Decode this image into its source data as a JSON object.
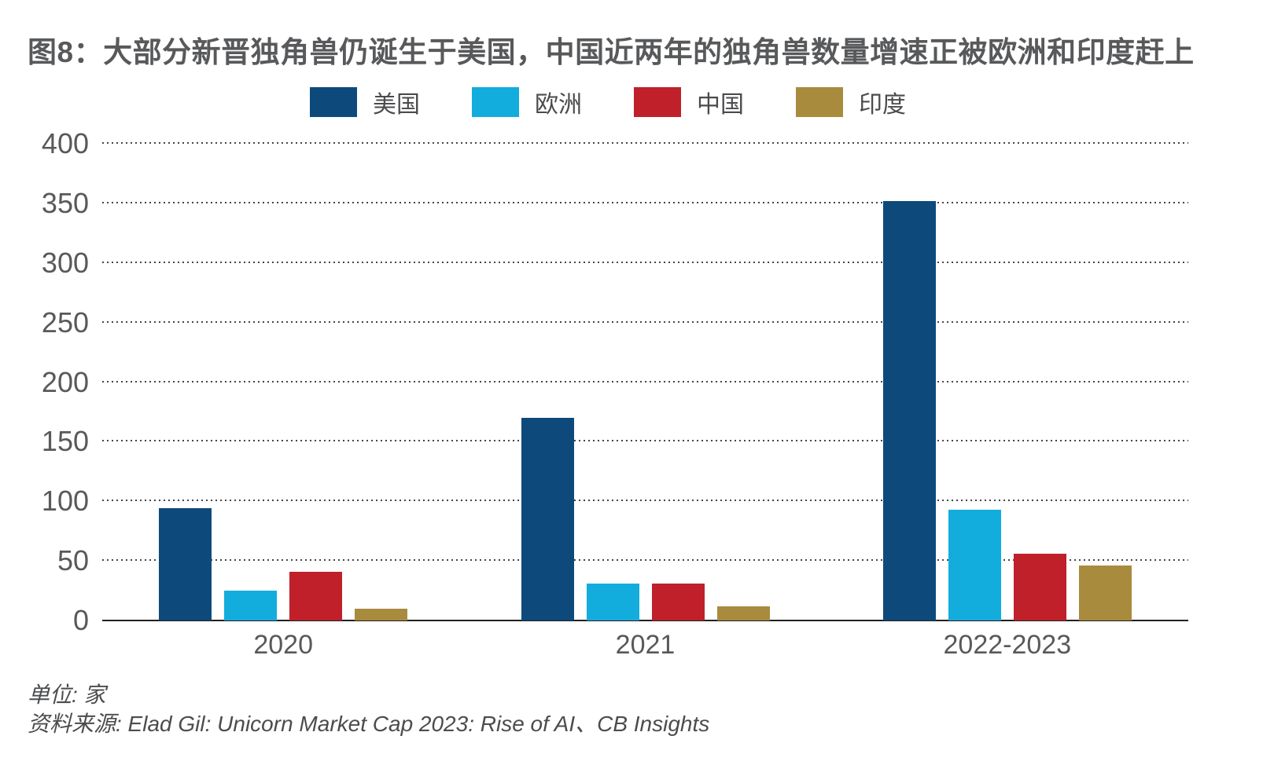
{
  "title": "图8：大部分新晋独角兽仍诞生于美国，中国近两年的独角兽数量增速正被欧洲和印度赶上",
  "footer": {
    "unit": "单位: 家",
    "source": "资料来源: Elad Gil: Unicorn Market Cap 2023: Rise of AI、CB Insights"
  },
  "colors": {
    "us_navy": "#0d4a7b",
    "europe_cyan": "#12addc",
    "china_red": "#bf202a",
    "india_gold": "#a98b3e",
    "text_gray": "#58595b",
    "axis_line": "#231f20"
  },
  "chart_data": {
    "type": "bar",
    "title": "图8：大部分新晋独角兽仍诞生于美国，中国近两年的独角兽数量增速正被欧洲和印度赶上",
    "categories": [
      "2020",
      "2021",
      "2022-2023"
    ],
    "series": [
      {
        "key": "us",
        "name": "美国",
        "color": "#0d4a7b",
        "values": [
          94,
          170,
          352
        ]
      },
      {
        "key": "europe",
        "name": "欧洲",
        "color": "#12addc",
        "values": [
          25,
          31,
          93
        ]
      },
      {
        "key": "china",
        "name": "中国",
        "color": "#bf202a",
        "values": [
          41,
          31,
          56
        ]
      },
      {
        "key": "india",
        "name": "印度",
        "color": "#a98b3e",
        "values": [
          10,
          12,
          46
        ]
      }
    ],
    "xlabel": "",
    "ylabel": "",
    "unit": "家",
    "ylim": [
      0,
      400
    ],
    "yticks": [
      0,
      50,
      100,
      150,
      200,
      250,
      300,
      350,
      400
    ],
    "grid": "horizontal-dotted",
    "legend_position": "top"
  }
}
